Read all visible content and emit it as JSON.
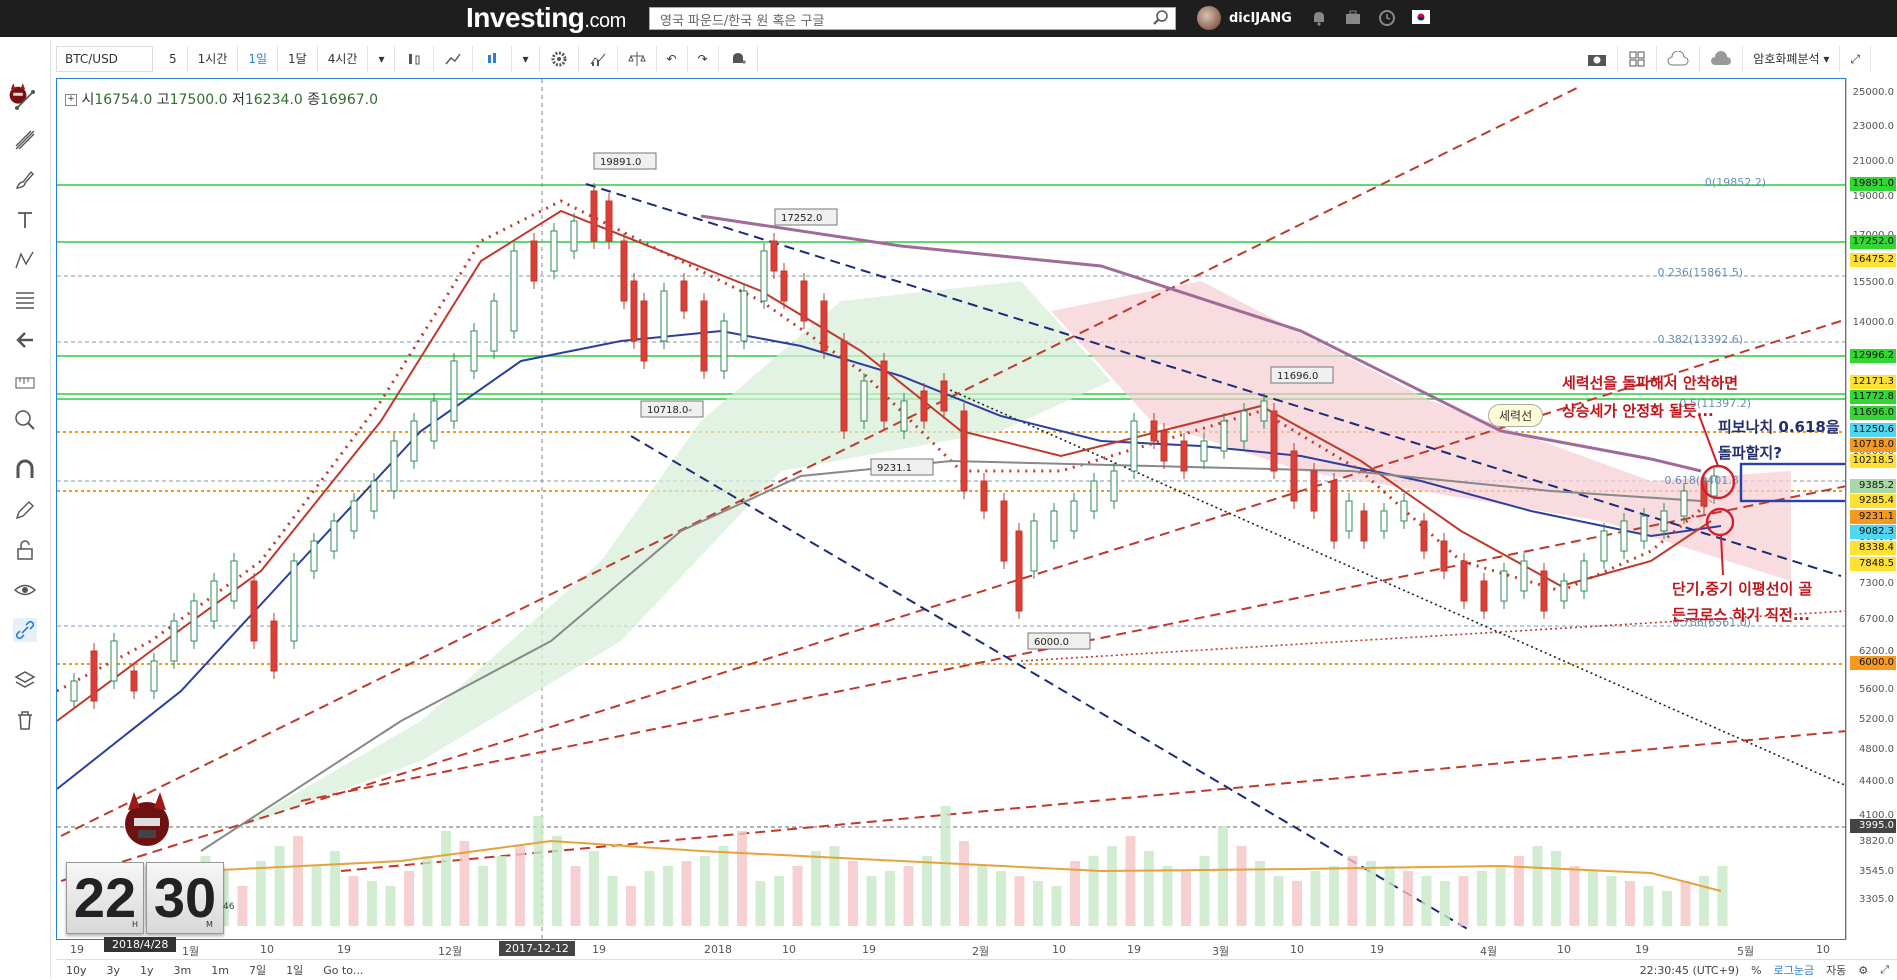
{
  "header": {
    "logo_text": "Investing",
    "logo_suffix": ".com",
    "search_placeholder": "영국 파운드/한국 원 혹은 구글",
    "username": "dicIJANG"
  },
  "toolbar": {
    "symbol": "BTC/USD",
    "intervals": [
      "5",
      "1시간",
      "1일",
      "1달",
      "4시간"
    ],
    "active_interval": "1일",
    "right_label": "암호화폐분석"
  },
  "ohlc": {
    "o_label": "시",
    "o": "16754.0",
    "h_label": "고",
    "h": "17500.0",
    "l_label": "저",
    "l": "16234.0",
    "c_label": "종",
    "c": "16967.0"
  },
  "y_axis": {
    "ticks": [
      "25000.0",
      "23000.0",
      "21000.0",
      "19000.0",
      "17000.0",
      "15500.0",
      "14000.0",
      "13000.0",
      "12000.0",
      "11000.0",
      "10000.0",
      "9000.0",
      "8000.0",
      "7300.0",
      "6700.0",
      "6200.0",
      "5600.0",
      "5200.0",
      "4800.0",
      "4400.0",
      "4100.0",
      "3820.0",
      "3545.0",
      "3305.0"
    ],
    "labels": [
      {
        "text": "19891.0",
        "color": "#34d634"
      },
      {
        "text": "17252.0",
        "color": "#34d634"
      },
      {
        "text": "16475.2",
        "color": "#ffe033"
      },
      {
        "text": "12996.2",
        "color": "#34d634"
      },
      {
        "text": "12171.3",
        "color": "#ffe033"
      },
      {
        "text": "11772.8",
        "color": "#34d634"
      },
      {
        "text": "11696.0",
        "color": "#34d634"
      },
      {
        "text": "11250.6",
        "color": "#4fd6f0"
      },
      {
        "text": "10718.0",
        "color": "#f59a1f"
      },
      {
        "text": "10218.5",
        "color": "#ffe033"
      },
      {
        "text": "9385.2",
        "color": "#a8d8a8"
      },
      {
        "text": "9285.4",
        "color": "#ffe033"
      },
      {
        "text": "9231.1",
        "color": "#f59a1f"
      },
      {
        "text": "9082.3",
        "color": "#4fd6f0"
      },
      {
        "text": "8338.4",
        "color": "#ffe033"
      },
      {
        "text": "7848.5",
        "color": "#ffe033"
      },
      {
        "text": "6000.0",
        "color": "#f59a1f"
      },
      {
        "text": "3995.0",
        "color": "#444444"
      }
    ]
  },
  "x_axis": {
    "ticks": [
      "19",
      "1월",
      "10",
      "19",
      "12월",
      "2017-12-12",
      "19",
      "2018",
      "10",
      "19",
      "2월",
      "10",
      "19",
      "3월",
      "10",
      "19",
      "4월",
      "10",
      "19",
      "5월",
      "10"
    ]
  },
  "price_callouts": [
    "19891.0",
    "17252.0",
    "10718.0-",
    "9231.1",
    "6000.0",
    "11696.0"
  ],
  "fib_labels": [
    "0(19852.2)",
    "0.236(15861.5)",
    "0.382(13392.6)",
    "0.5(11397.2)",
    "0.618(9401.8)",
    "0.786(6561.0)"
  ],
  "annotations": {
    "line1": "세력선을 돌파해서 안착하면",
    "line2": "상승세가 안정화 될듯...",
    "fib_line1": "피보나치 0.618을",
    "fib_line2": "돌파할지?",
    "cross_line1": "단기,중기 이평선이 골",
    "cross_line2": "든크로스 하기 직전...",
    "bubble": "세력선"
  },
  "clock": {
    "hour": "22",
    "minute": "30",
    "seconds": "46",
    "h_label": "H",
    "m_label": "M",
    "watermark": "dicIJANG"
  },
  "date_badge": "2018/4/28",
  "bottom": {
    "ranges": [
      "10y",
      "3y",
      "1y",
      "3m",
      "1m",
      "7일",
      "1일",
      "Go to..."
    ],
    "time": "22:30:45 (UTC+9)",
    "pct": "%",
    "log": "로그눈금",
    "auto": "자동"
  }
}
